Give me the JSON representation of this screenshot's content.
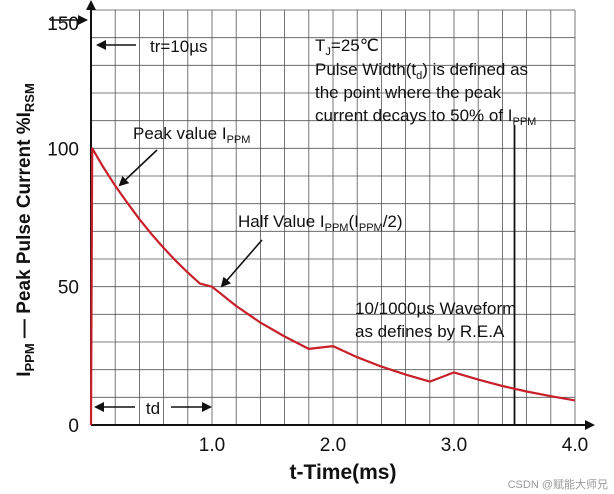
{
  "chart_data": {
    "type": "line",
    "xlabel": "t-Time(ms)",
    "ylabel": "I_PPM — Peak Pulse Current  %I_RSM",
    "xlim": [
      0,
      4.0
    ],
    "ylim": [
      0,
      150
    ],
    "x_ticks": [
      "1.0",
      "2.0",
      "3.0",
      "4.0"
    ],
    "y_ticks": [
      "0",
      "50",
      "100",
      "150"
    ],
    "grid": true,
    "series": [
      {
        "color": "#c8202a",
        "x": [
          0,
          0.01,
          0.1,
          0.2,
          0.3,
          0.4,
          0.5,
          0.6,
          0.7,
          0.8,
          0.9,
          1.0,
          1.2,
          1.4,
          1.6,
          1.8,
          2.0,
          2.2,
          2.4,
          2.6,
          2.8,
          3.0,
          3.2,
          3.4,
          3.6,
          3.8,
          4.0
        ],
        "y": [
          0,
          100,
          93.3,
          86.5,
          80.3,
          74.4,
          69.0,
          64.0,
          59.4,
          55.1,
          51.1,
          50,
          43.0,
          37.0,
          32.0,
          27.5,
          28.5,
          24.5,
          21.1,
          18.2,
          15.7,
          19.0,
          16.4,
          14.1,
          12.1,
          10.4,
          8.9
        ]
      }
    ],
    "annotations": {
      "tr": "tr=10µs",
      "tj": "T",
      "tj_sub": "J",
      "tj_rest": "=25℃",
      "pulse_line1_a": "Pulse Width(t",
      "pulse_line1_sub": "d",
      "pulse_line1_b": ") is defined as",
      "pulse_line2": "the point where the peak",
      "pulse_line3_a": "current decays to 50% of I",
      "pulse_line3_sub": "PPM",
      "peak_a": "Peak value I",
      "peak_sub": "PPM",
      "half_a": "Half Value I",
      "half_sub1": "PPM",
      "half_b": "(I",
      "half_sub2": "PPM",
      "half_c": "/2)",
      "waveform_line1": "10/1000µs Waveform",
      "waveform_line2": "as defines by R.E.A",
      "td": "td"
    },
    "ylabel_parts": {
      "i": "I",
      "i_sub": "PPM",
      "mid": " — Peak Pulse Current  %I",
      "rsm_sub": "RSM"
    }
  },
  "watermark": "CSDN @赋能大师兄"
}
